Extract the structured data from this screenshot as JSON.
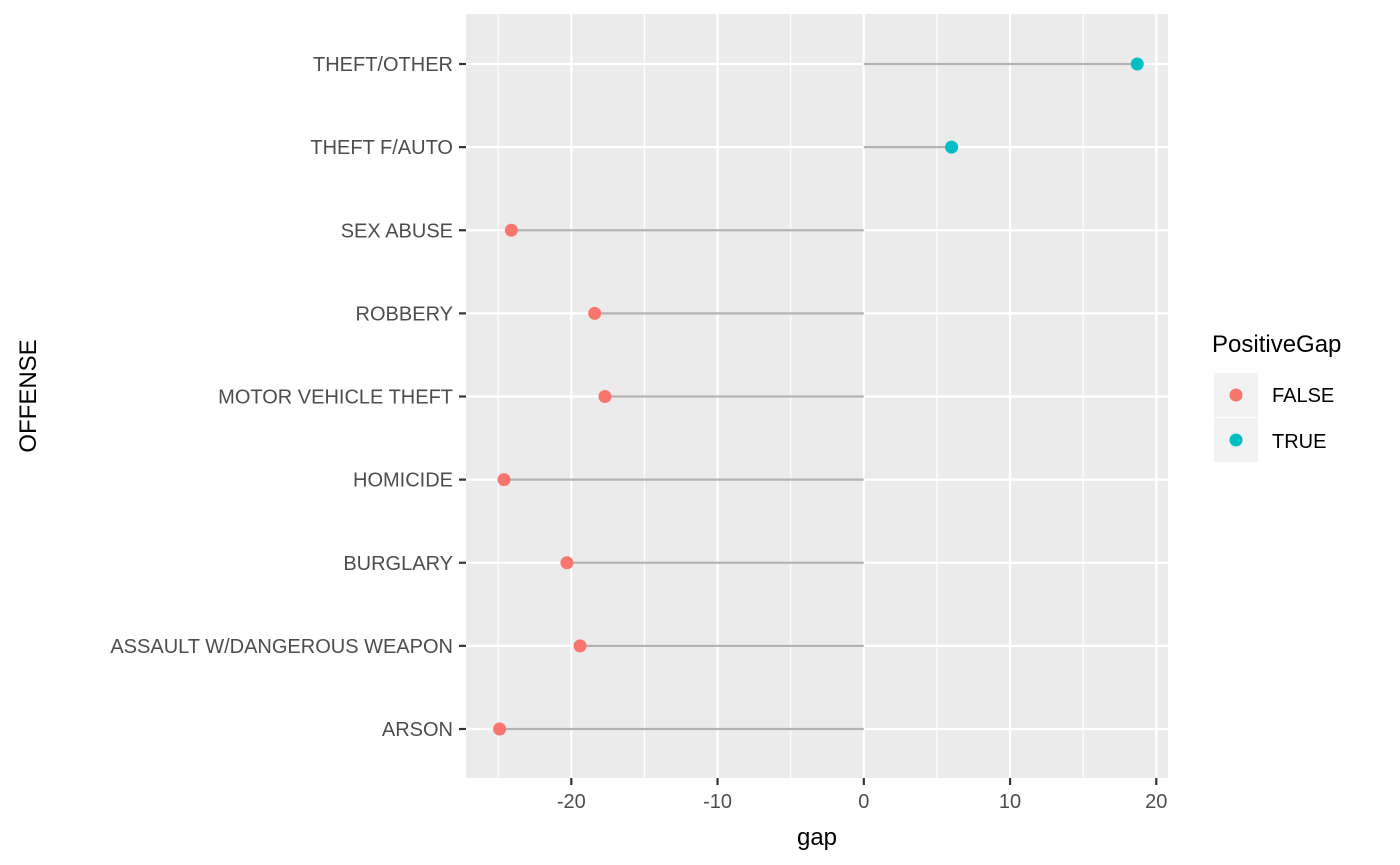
{
  "chart_data": {
    "type": "scatter",
    "style": "lollipop",
    "xlabel": "gap",
    "ylabel": "OFFENSE",
    "xlim": [
      -27.2,
      20.8
    ],
    "x_ticks": [
      -20,
      -10,
      0,
      10,
      20
    ],
    "x_tick_labels": [
      "-20",
      "-10",
      "0",
      "10",
      "20"
    ],
    "grid": true,
    "legend_position": "right",
    "legend_title": "PositiveGap",
    "legend_items": [
      {
        "label": "FALSE",
        "color": "#F8766D"
      },
      {
        "label": "TRUE",
        "color": "#00BFC4"
      }
    ],
    "categories": [
      "THEFT/OTHER",
      "THEFT F/AUTO",
      "SEX ABUSE",
      "ROBBERY",
      "MOTOR VEHICLE THEFT",
      "HOMICIDE",
      "BURGLARY",
      "ASSAULT W/DANGEROUS WEAPON",
      "ARSON"
    ],
    "values": [
      18.7,
      6.0,
      -24.1,
      -18.4,
      -17.7,
      -24.6,
      -20.3,
      -19.4,
      -24.9
    ],
    "positive_gap": [
      true,
      true,
      false,
      false,
      false,
      false,
      false,
      false,
      false
    ]
  },
  "colors": {
    "panel_bg": "#EBEBEB",
    "grid": "#FFFFFF",
    "segment": "#B3B3B3",
    "false_point": "#F8766D",
    "true_point": "#00BFC4"
  }
}
